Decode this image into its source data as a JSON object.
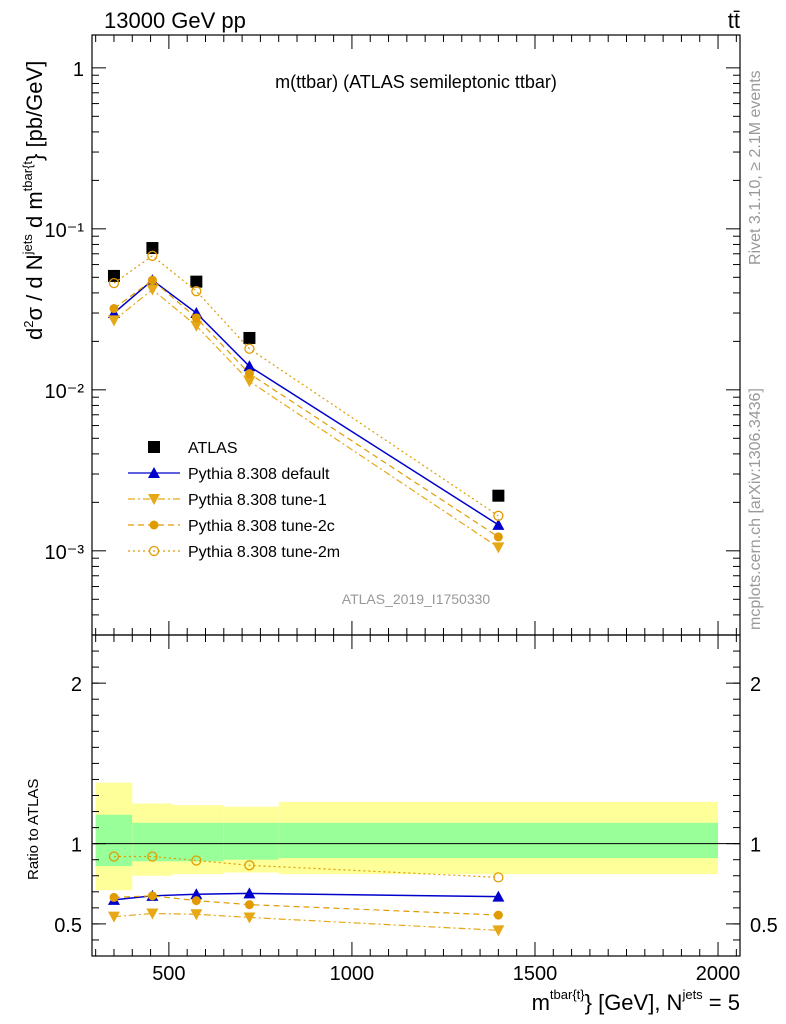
{
  "header": {
    "process": "13000 GeV pp",
    "channel": "tt̄"
  },
  "side_labels": {
    "rivet": "Rivet 3.1.10, ≥ 2.1M events",
    "mcplots": "mcplots.cern.ch [arXiv:1306.3436]"
  },
  "chart_data": [
    {
      "type": "scatter",
      "panel": "main",
      "title": "m(ttbar) (ATLAS semileptonic ttbar)",
      "watermark": "ATLAS_2019_I1750330",
      "ylabel": "d²σ / d Nʲᵉᵗˢ d m^{tbar{t}} [pb/GeV]",
      "yscale": "log",
      "ylim": [
        0.0003,
        1.6
      ],
      "xlim": [
        290,
        2060
      ],
      "y_ticks": [
        "1",
        "10⁻¹",
        "10⁻²",
        "10⁻³"
      ],
      "legend_position": "bottom-left",
      "series": [
        {
          "name": "ATLAS",
          "color": "#000000",
          "marker": "square",
          "x": [
            350,
            455,
            575,
            720,
            1400
          ],
          "y": [
            0.051,
            0.076,
            0.047,
            0.021,
            0.0022
          ]
        },
        {
          "name": "Pythia 8.308 default",
          "color": "#0000cc",
          "marker": "triangle-up",
          "line": "solid",
          "x": [
            350,
            455,
            575,
            720,
            1400
          ],
          "y": [
            0.03,
            0.048,
            0.03,
            0.014,
            0.00145
          ]
        },
        {
          "name": "Pythia 8.308 tune-1",
          "color": "#e6a817",
          "marker": "triangle-down",
          "line": "dashdot",
          "x": [
            350,
            455,
            575,
            720,
            1400
          ],
          "y": [
            0.027,
            0.042,
            0.025,
            0.0113,
            0.00105
          ]
        },
        {
          "name": "Pythia 8.308 tune-2c",
          "color": "#e09b00",
          "marker": "circle",
          "line": "dashed",
          "x": [
            350,
            455,
            575,
            720,
            1400
          ],
          "y": [
            0.032,
            0.048,
            0.028,
            0.0126,
            0.00122
          ]
        },
        {
          "name": "Pythia 8.308 tune-2m",
          "color": "#e09b00",
          "marker": "open-circle",
          "line": "dotted",
          "x": [
            350,
            455,
            575,
            720,
            1400
          ],
          "y": [
            0.046,
            0.068,
            0.041,
            0.018,
            0.00165
          ]
        }
      ]
    },
    {
      "type": "line",
      "panel": "ratio",
      "ylabel": "Ratio to ATLAS",
      "ylim": [
        0.3,
        2.3
      ],
      "xlim": [
        290,
        2060
      ],
      "y_ticks": [
        "0.5",
        "1",
        "2"
      ],
      "x_ticks": [
        "500",
        "1000",
        "1500",
        "2000"
      ],
      "xlabel": "m^{tbar{t}} [GeV], N^{jets} = 5",
      "bands": {
        "bins": [
          300,
          400,
          510,
          650,
          800,
          2000
        ],
        "inner_lo": [
          0.86,
          0.89,
          0.89,
          0.9,
          0.91
        ],
        "inner_hi": [
          1.18,
          1.13,
          1.13,
          1.13,
          1.13
        ],
        "outer_lo": [
          0.71,
          0.8,
          0.81,
          0.82,
          0.81
        ],
        "outer_hi": [
          1.38,
          1.25,
          1.24,
          1.23,
          1.26
        ],
        "inner_color": "#99ff99",
        "outer_color": "#ffff99"
      },
      "series": [
        {
          "name": "Pythia 8.308 default",
          "color": "#0000cc",
          "x": [
            350,
            455,
            575,
            720,
            1400
          ],
          "y": [
            0.65,
            0.675,
            0.685,
            0.69,
            0.67
          ]
        },
        {
          "name": "Pythia 8.308 tune-1",
          "color": "#e6a817",
          "x": [
            350,
            455,
            575,
            720,
            1400
          ],
          "y": [
            0.545,
            0.565,
            0.56,
            0.54,
            0.46
          ]
        },
        {
          "name": "Pythia 8.308 tune-2c",
          "color": "#e09b00",
          "x": [
            350,
            455,
            575,
            720,
            1400
          ],
          "y": [
            0.665,
            0.675,
            0.645,
            0.62,
            0.555
          ]
        },
        {
          "name": "Pythia 8.308 tune-2m",
          "color": "#e09b00",
          "x": [
            350,
            455,
            575,
            720,
            1400
          ],
          "y": [
            0.92,
            0.92,
            0.895,
            0.865,
            0.79
          ]
        }
      ]
    }
  ]
}
